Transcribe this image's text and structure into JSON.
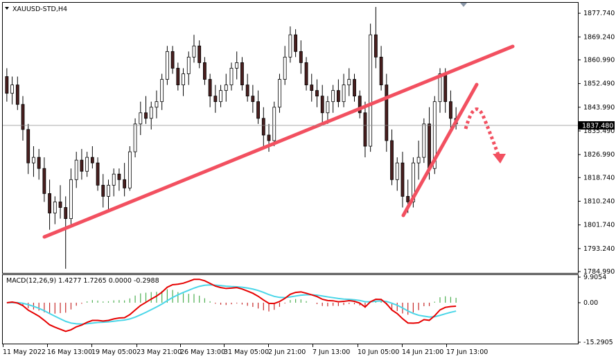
{
  "symbol_title": "XAUUSD-STD,H4",
  "current_price": "1837.480",
  "chart_data": {
    "type": "candlestick",
    "symbol": "XAUUSD-STD",
    "timeframe": "H4",
    "price_axis_ticks": [
      "1877.740",
      "1869.240",
      "1860.990",
      "1852.490",
      "1843.990",
      "1835.490",
      "1826.990",
      "1818.740",
      "1810.240",
      "1801.740",
      "1793.240",
      "1784.990"
    ],
    "ylim": [
      1784.99,
      1881.0
    ],
    "time_axis_ticks": [
      "11 May 2022",
      "16 May 13:00",
      "19 May 05:00",
      "23 May 21:00",
      "26 May 13:00",
      "31 May 05:00",
      "2 Jun 21:00",
      "7 Jun 13:00",
      "10 Jun 05:00",
      "14 Jun 21:00",
      "17 Jun 13:00"
    ],
    "candles": [
      [
        1855,
        1858,
        1846,
        1849
      ],
      [
        1849,
        1855,
        1845,
        1852
      ],
      [
        1852,
        1855,
        1843,
        1845
      ],
      [
        1845,
        1848,
        1832,
        1836
      ],
      [
        1836,
        1838,
        1820,
        1824
      ],
      [
        1824,
        1830,
        1819,
        1826
      ],
      [
        1826,
        1829,
        1818,
        1822
      ],
      [
        1822,
        1826,
        1810,
        1813
      ],
      [
        1813,
        1818,
        1800,
        1806
      ],
      [
        1806,
        1812,
        1802,
        1810
      ],
      [
        1810,
        1816,
        1804,
        1808
      ],
      [
        1808,
        1812,
        1786,
        1804
      ],
      [
        1804,
        1822,
        1802,
        1818
      ],
      [
        1818,
        1828,
        1815,
        1825
      ],
      [
        1825,
        1829,
        1818,
        1821
      ],
      [
        1821,
        1828,
        1819,
        1826
      ],
      [
        1826,
        1830,
        1822,
        1824
      ],
      [
        1824,
        1826,
        1814,
        1816
      ],
      [
        1816,
        1820,
        1808,
        1812
      ],
      [
        1812,
        1818,
        1807,
        1816
      ],
      [
        1816,
        1822,
        1812,
        1820
      ],
      [
        1820,
        1822,
        1814,
        1818
      ],
      [
        1818,
        1824,
        1812,
        1815
      ],
      [
        1815,
        1830,
        1814,
        1828
      ],
      [
        1828,
        1840,
        1826,
        1838
      ],
      [
        1838,
        1846,
        1834,
        1842
      ],
      [
        1842,
        1848,
        1838,
        1840
      ],
      [
        1840,
        1846,
        1836,
        1844
      ],
      [
        1844,
        1850,
        1840,
        1846
      ],
      [
        1846,
        1856,
        1843,
        1854
      ],
      [
        1854,
        1866,
        1852,
        1864
      ],
      [
        1864,
        1866,
        1856,
        1858
      ],
      [
        1858,
        1860,
        1850,
        1852
      ],
      [
        1852,
        1858,
        1848,
        1856
      ],
      [
        1856,
        1864,
        1852,
        1862
      ],
      [
        1862,
        1870,
        1860,
        1866
      ],
      [
        1866,
        1868,
        1858,
        1860
      ],
      [
        1860,
        1862,
        1852,
        1854
      ],
      [
        1854,
        1856,
        1844,
        1848
      ],
      [
        1848,
        1852,
        1842,
        1846
      ],
      [
        1846,
        1852,
        1844,
        1850
      ],
      [
        1850,
        1856,
        1846,
        1852
      ],
      [
        1852,
        1860,
        1850,
        1858
      ],
      [
        1858,
        1864,
        1854,
        1860
      ],
      [
        1860,
        1862,
        1850,
        1852
      ],
      [
        1852,
        1856,
        1846,
        1848
      ],
      [
        1848,
        1852,
        1842,
        1846
      ],
      [
        1846,
        1850,
        1838,
        1840
      ],
      [
        1840,
        1844,
        1830,
        1834
      ],
      [
        1834,
        1838,
        1828,
        1832
      ],
      [
        1832,
        1846,
        1830,
        1844
      ],
      [
        1844,
        1856,
        1842,
        1854
      ],
      [
        1854,
        1866,
        1852,
        1862
      ],
      [
        1862,
        1873,
        1860,
        1870
      ],
      [
        1870,
        1872,
        1862,
        1864
      ],
      [
        1864,
        1868,
        1856,
        1860
      ],
      [
        1860,
        1862,
        1850,
        1852
      ],
      [
        1852,
        1856,
        1846,
        1850
      ],
      [
        1850,
        1854,
        1844,
        1848
      ],
      [
        1848,
        1852,
        1838,
        1842
      ],
      [
        1842,
        1848,
        1838,
        1846
      ],
      [
        1846,
        1852,
        1842,
        1850
      ],
      [
        1850,
        1854,
        1844,
        1846
      ],
      [
        1846,
        1856,
        1844,
        1852
      ],
      [
        1852,
        1858,
        1848,
        1854
      ],
      [
        1854,
        1856,
        1846,
        1848
      ],
      [
        1848,
        1850,
        1840,
        1842
      ],
      [
        1842,
        1846,
        1826,
        1830
      ],
      [
        1830,
        1874,
        1828,
        1870
      ],
      [
        1870,
        1880,
        1858,
        1862
      ],
      [
        1862,
        1866,
        1850,
        1852
      ],
      [
        1852,
        1856,
        1828,
        1832
      ],
      [
        1832,
        1836,
        1816,
        1818
      ],
      [
        1818,
        1826,
        1814,
        1824
      ],
      [
        1824,
        1828,
        1808,
        1812
      ],
      [
        1812,
        1818,
        1806,
        1810
      ],
      [
        1810,
        1826,
        1808,
        1824
      ],
      [
        1824,
        1832,
        1818,
        1826
      ],
      [
        1826,
        1840,
        1824,
        1838
      ],
      [
        1838,
        1844,
        1818,
        1822
      ],
      [
        1822,
        1848,
        1820,
        1846
      ],
      [
        1846,
        1858,
        1842,
        1856
      ],
      [
        1856,
        1858,
        1842,
        1846
      ],
      [
        1846,
        1850,
        1836,
        1840
      ],
      [
        1840,
        1844,
        1836,
        1838
      ]
    ],
    "trendlines": [
      {
        "name": "support-trendline",
        "from": [
          0,
          1798
        ],
        "to": [
          84,
          1866
        ]
      },
      {
        "name": "short-rising-line",
        "from": [
          72,
          1807
        ],
        "to": [
          84,
          1854
        ]
      }
    ],
    "indicator": {
      "label": "MACD(12,26,9) 1.4277 1.7265 0.0000 -0.2988",
      "axis_ticks": [
        "9.9054",
        "0.00",
        "-15.2905"
      ],
      "ylim": [
        -15.2905,
        9.9054
      ]
    },
    "colors": {
      "bull": "#ffffff",
      "bear": "#4a1f1f",
      "trendline": "#f25060",
      "macd_line": "#e60000",
      "signal_line": "#4ad6e8",
      "hist_pos": "#4caf50",
      "hist_neg": "#c62828",
      "grid": "#000000"
    }
  }
}
